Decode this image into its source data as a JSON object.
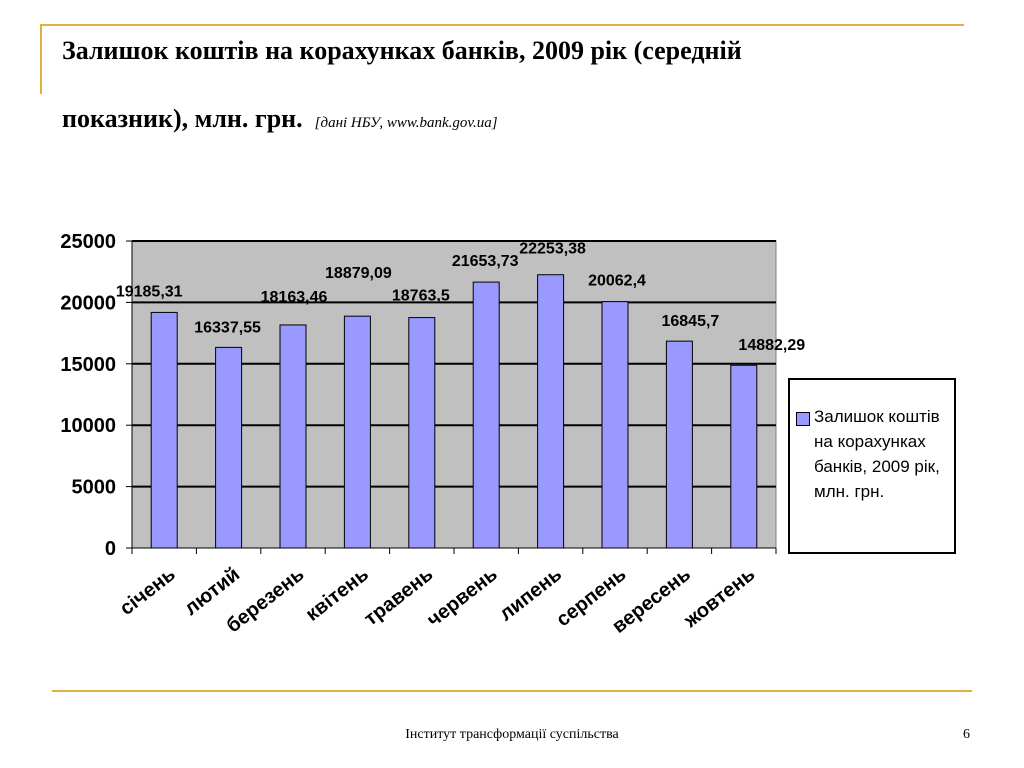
{
  "slide": {
    "title_line1": "Залишок коштів на корахунках банків, 2009 рік (середній",
    "title_line2": "показник), млн. грн.",
    "source": "[дані НБУ, www.bank.gov.ua]",
    "footer": "Інститут трансформації суспільства",
    "page_number": "6"
  },
  "colors": {
    "accent_line": "#E0B13E",
    "plot_background": "#C0C0C0",
    "bar_fill": "#9999FF"
  },
  "chart_data": {
    "type": "bar",
    "categories": [
      "січень",
      "лютий",
      "березень",
      "квітень",
      "травень",
      "червень",
      "липень",
      "серпень",
      "вересень",
      "жовтень"
    ],
    "series": [
      {
        "name": "Залишок коштів на корахунках банків, 2009 рік, млн. грн.",
        "values": [
          19185.31,
          16337.55,
          18163.46,
          18879.09,
          18763.5,
          21653.73,
          22253.38,
          20062.4,
          16845.7,
          14882.29
        ],
        "labels": [
          "19185,31",
          "16337,55",
          "18163,46",
          "18879,09",
          "18763,5",
          "21653,73",
          "22253,38",
          "20062,4",
          "16845,7",
          "14882,29"
        ]
      }
    ],
    "yticks": [
      "0",
      "5000",
      "10000",
      "15000",
      "20000",
      "25000"
    ],
    "ylim": [
      0,
      25000
    ],
    "grid": true,
    "legend": "right",
    "xlabel": "",
    "ylabel": ""
  }
}
